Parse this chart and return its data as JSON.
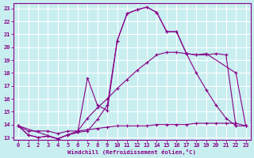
{
  "xlabel": "Windchill (Refroidissement éolien,°C)",
  "background_color": "#c8eef0",
  "grid_color": "#ffffff",
  "line_color": "#880088",
  "xlim": [
    -0.5,
    23.5
  ],
  "ylim": [
    12.8,
    23.4
  ],
  "xticks": [
    0,
    1,
    2,
    3,
    4,
    5,
    6,
    7,
    8,
    9,
    10,
    11,
    12,
    13,
    14,
    15,
    16,
    17,
    18,
    19,
    20,
    21,
    22,
    23
  ],
  "yticks": [
    13,
    14,
    15,
    16,
    17,
    18,
    19,
    20,
    21,
    22,
    23
  ],
  "line1_x": [
    0,
    1,
    2,
    3,
    4,
    5,
    6,
    7,
    8,
    9,
    10,
    11,
    12,
    13,
    14,
    15,
    16,
    17,
    18,
    19,
    20,
    21,
    22
  ],
  "line1_y": [
    13.9,
    13.2,
    13.0,
    13.1,
    12.9,
    13.2,
    13.4,
    13.5,
    14.4,
    15.5,
    20.5,
    22.6,
    22.9,
    23.1,
    22.7,
    21.2,
    21.2,
    19.5,
    19.4,
    19.4,
    19.5,
    19.4,
    13.9
  ],
  "line2_x": [
    0,
    1,
    2,
    3,
    4,
    5,
    6,
    7,
    8,
    9,
    10,
    11,
    12,
    13,
    14,
    15,
    16,
    17,
    18,
    19,
    22,
    23
  ],
  "line2_y": [
    13.9,
    13.2,
    13.0,
    13.1,
    12.9,
    13.2,
    13.4,
    17.6,
    15.5,
    15.1,
    20.5,
    22.6,
    22.9,
    23.1,
    22.7,
    21.2,
    21.2,
    19.5,
    19.4,
    19.5,
    18.0,
    13.9
  ],
  "line3_x": [
    0,
    1,
    2,
    3,
    4,
    5,
    6,
    7,
    8,
    9,
    10,
    11,
    12,
    13,
    14,
    15,
    16,
    17,
    18,
    19,
    20,
    21,
    22,
    23
  ],
  "line3_y": [
    13.9,
    13.5,
    13.5,
    13.5,
    13.3,
    13.5,
    13.5,
    13.6,
    13.7,
    13.8,
    13.9,
    13.9,
    13.9,
    13.9,
    14.0,
    14.0,
    14.0,
    14.0,
    14.1,
    14.1,
    14.1,
    14.1,
    14.1,
    13.9
  ],
  "line4_x": [
    0,
    4,
    5,
    6,
    7,
    8,
    9,
    10,
    11,
    12,
    13,
    14,
    15,
    16,
    17,
    18,
    19,
    20,
    21,
    22,
    23
  ],
  "line4_y": [
    13.9,
    12.9,
    13.2,
    13.5,
    14.5,
    15.3,
    16.0,
    16.8,
    17.5,
    18.2,
    18.8,
    19.4,
    19.6,
    19.6,
    19.5,
    18.0,
    16.7,
    15.5,
    14.5,
    13.9,
    13.9
  ]
}
